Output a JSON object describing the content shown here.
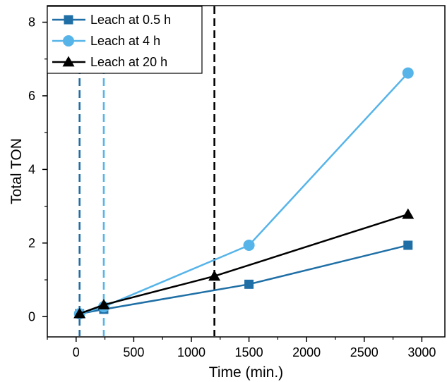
{
  "chart_data": {
    "type": "line",
    "xlabel": "Time (min.)",
    "ylabel": "Total TON",
    "xlim": [
      -250,
      3200
    ],
    "ylim": [
      -0.55,
      8.45
    ],
    "x_ticks": [
      0,
      500,
      1000,
      1500,
      2000,
      2500,
      3000
    ],
    "x_tick_labels": [
      "0",
      "500",
      "1000",
      "1500",
      "2000",
      "2500",
      "3000"
    ],
    "y_ticks": [
      0,
      2,
      4,
      6,
      8
    ],
    "y_tick_labels": [
      "0",
      "2",
      "4",
      "6",
      "8"
    ],
    "legend_position": "top-left",
    "grid": false,
    "series": [
      {
        "name": "Leach at 0.5 h",
        "color": "#1f6fa6",
        "marker": "square",
        "x": [
          30,
          240,
          1500,
          2880
        ],
        "y": [
          0.08,
          0.2,
          0.88,
          1.94
        ]
      },
      {
        "name": "Leach at 4 h",
        "color": "#56b4e9",
        "marker": "circle",
        "x": [
          30,
          240,
          1500,
          2880
        ],
        "y": [
          0.08,
          0.27,
          1.94,
          6.62
        ]
      },
      {
        "name": "Leach at 20 h",
        "color": "#000000",
        "marker": "triangle",
        "x": [
          30,
          240,
          1200,
          2880
        ],
        "y": [
          0.08,
          0.32,
          1.1,
          2.78
        ]
      }
    ],
    "vertical_lines": [
      {
        "x": 30,
        "color": "#1f6fa6"
      },
      {
        "x": 240,
        "color": "#56b4e9"
      },
      {
        "x": 1200,
        "color": "#000000"
      }
    ]
  }
}
